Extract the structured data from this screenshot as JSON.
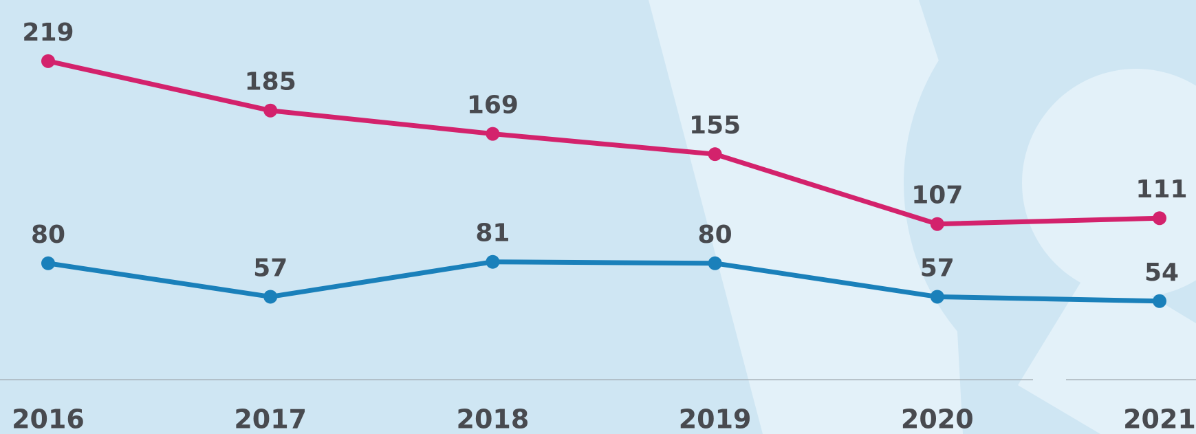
{
  "chart_data": {
    "type": "line",
    "categories": [
      "2016",
      "2017",
      "2018",
      "2019",
      "2020",
      "2021"
    ],
    "series": [
      {
        "color": "#d3226c",
        "values": [
          219,
          185,
          169,
          155,
          107,
          111
        ]
      },
      {
        "color": "#1a80ba",
        "values": [
          80,
          57,
          81,
          80,
          57,
          54
        ]
      }
    ],
    "ylim": [
      0,
      261
    ]
  }
}
